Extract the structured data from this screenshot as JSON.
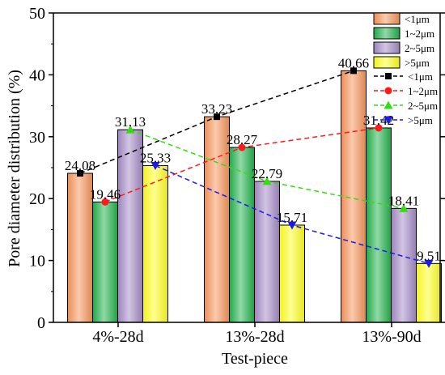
{
  "chart_data": {
    "type": "bar",
    "xlabel": "Test-piece",
    "ylabel": "Pore diameter distribution (%)",
    "ylim": [
      0,
      50
    ],
    "yticks": [
      0,
      10,
      20,
      30,
      40,
      50
    ],
    "categories": [
      "4%-28d",
      "13%-28d",
      "13%-90d"
    ],
    "legend_position": "top-right",
    "series": [
      {
        "name": "<1μm",
        "values": [
          24.08,
          33.23,
          40.66
        ],
        "labels": [
          "24.08",
          "33.23",
          "40.66"
        ],
        "color": "#f7955a",
        "line_color": "#000000",
        "marker": "square"
      },
      {
        "name": "1~2μm",
        "values": [
          19.46,
          28.27,
          31.42
        ],
        "labels": [
          "19.46",
          "28.27",
          "31.42"
        ],
        "color": "#22b24c",
        "line_color": "#ff1a1a",
        "marker": "circle"
      },
      {
        "name": "2~5μm",
        "values": [
          31.13,
          22.79,
          18.41
        ],
        "labels": [
          "31.13",
          "22.79",
          "18.41"
        ],
        "color": "#a48bc6",
        "line_color": "#33dd11",
        "marker": "triangle-up"
      },
      {
        "name": ">5μm",
        "values": [
          25.33,
          15.71,
          9.51
        ],
        "labels": [
          "25.33",
          "15.71",
          "9.51"
        ],
        "color": "#ffff22",
        "line_color": "#1a1aee",
        "marker": "triangle-down"
      }
    ]
  }
}
